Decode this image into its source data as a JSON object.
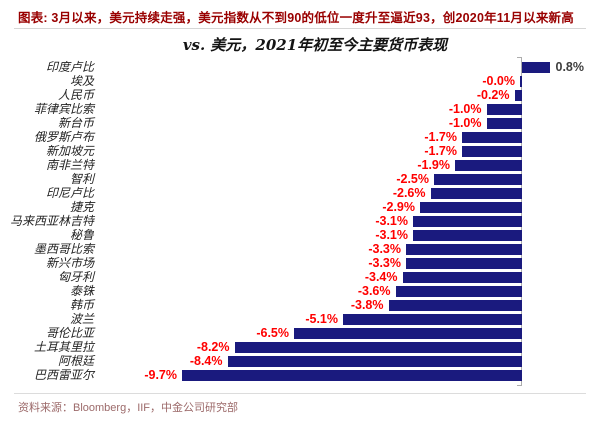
{
  "header": {
    "figure_caption": "图表: 3月以来，美元持续走强，美元指数从不到90的低位一度升至逼近93，创2020年11月以来新高"
  },
  "footer": {
    "source": "资料来源：Bloomberg，IIF，中金公司研究部"
  },
  "colors": {
    "bar": "#1a1a7e",
    "negative_label": "#ff0000",
    "positive_label": "#3d3d3d",
    "caption": "#990000",
    "source": "#9c6a6a",
    "axis": "#adadad"
  },
  "chart_data": {
    "type": "bar",
    "orientation": "horizontal",
    "title": "vs. 美元，2021年初至今主要货币表现",
    "unit": "%",
    "grid": false,
    "legend": false,
    "zero_axis": true,
    "value_label_position": "outside-end",
    "categories": [
      "印度卢比",
      "埃及",
      "人民币",
      "菲律宾比索",
      "新台币",
      "俄罗斯卢布",
      "新加坡元",
      "南非兰特",
      "智利",
      "印尼卢比",
      "捷克",
      "马来西亚林吉特",
      "秘鲁",
      "墨西哥比索",
      "新兴市场",
      "匈牙利",
      "泰铢",
      "韩币",
      "波兰",
      "哥伦比亚",
      "土耳其里拉",
      "阿根廷",
      "巴西雷亚尔"
    ],
    "values": [
      0.8,
      -0.0,
      -0.2,
      -1.0,
      -1.0,
      -1.7,
      -1.7,
      -1.9,
      -2.5,
      -2.6,
      -2.9,
      -3.1,
      -3.1,
      -3.3,
      -3.3,
      -3.4,
      -3.6,
      -3.8,
      -5.1,
      -6.5,
      -8.2,
      -8.4,
      -9.7
    ],
    "value_labels": [
      "0.8%",
      "-0.0%",
      "-0.2%",
      "-1.0%",
      "-1.0%",
      "-1.7%",
      "-1.7%",
      "-1.9%",
      "-2.5%",
      "-2.6%",
      "-2.9%",
      "-3.1%",
      "-3.1%",
      "-3.3%",
      "-3.3%",
      "-3.4%",
      "-3.6%",
      "-3.8%",
      "-5.1%",
      "-6.5%",
      "-8.2%",
      "-8.4%",
      "-9.7%"
    ],
    "xlim": [
      -12.2,
      2.2
    ]
  }
}
